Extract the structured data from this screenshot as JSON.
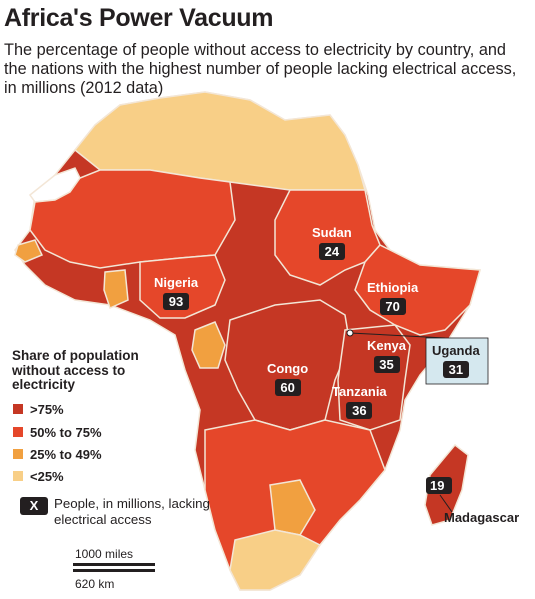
{
  "title": "Africa's Power Vacuum",
  "subtitle": "The percentage of people without access to electricity by country, and the nations with the highest number of people lacking electrical access, in millions (2012 data)",
  "legend": {
    "title": "Share of population without access to electricity",
    "items": [
      {
        "label": ">75%",
        "color": "#c53724"
      },
      {
        "label": "50% to 75%",
        "color": "#e5472a"
      },
      {
        "label": "25% to 49%",
        "color": "#f1a040"
      },
      {
        "label": "<25%",
        "color": "#f8cf87"
      }
    ],
    "key_symbol": "X",
    "key_text": "People, in millions, lacking electrical access"
  },
  "scale": {
    "miles": "1000 miles",
    "km": "620 km"
  },
  "countries": [
    {
      "name": "Nigeria",
      "value": "93"
    },
    {
      "name": "Sudan",
      "value": "24"
    },
    {
      "name": "Ethiopia",
      "value": "70"
    },
    {
      "name": "Kenya",
      "value": "35"
    },
    {
      "name": "Uganda",
      "value": "31"
    },
    {
      "name": "Congo",
      "value": "60"
    },
    {
      "name": "Tanzania",
      "value": "36"
    },
    {
      "name": "Madagascar",
      "value": "19"
    }
  ],
  "colors": {
    "ocean": "#ffffff",
    "border": "#f3e6d6",
    "text": "#231f20"
  }
}
